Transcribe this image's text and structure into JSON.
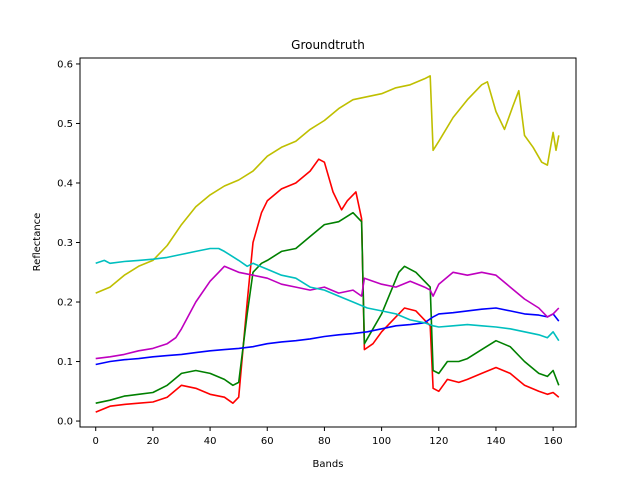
{
  "chart_data": {
    "type": "line",
    "title": "Groundtruth",
    "xlabel": "Bands",
    "ylabel": "Reflectance",
    "xlim": [
      -5.5,
      168
    ],
    "ylim": [
      -0.01,
      0.61
    ],
    "xticks": [
      0,
      20,
      40,
      60,
      80,
      100,
      120,
      140,
      160
    ],
    "yticks": [
      0.0,
      0.1,
      0.2,
      0.3,
      0.4,
      0.5,
      0.6
    ],
    "ytick_labels": [
      "0.0",
      "0.1",
      "0.2",
      "0.3",
      "0.4",
      "0.5",
      "0.6"
    ],
    "grid": false,
    "series": [
      {
        "color": "#bfbf00",
        "points": [
          [
            0,
            0.215
          ],
          [
            5,
            0.225
          ],
          [
            10,
            0.245
          ],
          [
            15,
            0.26
          ],
          [
            20,
            0.27
          ],
          [
            25,
            0.295
          ],
          [
            30,
            0.33
          ],
          [
            35,
            0.36
          ],
          [
            40,
            0.38
          ],
          [
            45,
            0.395
          ],
          [
            50,
            0.405
          ],
          [
            55,
            0.42
          ],
          [
            60,
            0.445
          ],
          [
            65,
            0.46
          ],
          [
            70,
            0.47
          ],
          [
            75,
            0.49
          ],
          [
            80,
            0.505
          ],
          [
            85,
            0.525
          ],
          [
            90,
            0.54
          ],
          [
            95,
            0.545
          ],
          [
            100,
            0.55
          ],
          [
            105,
            0.56
          ],
          [
            110,
            0.565
          ],
          [
            115,
            0.575
          ],
          [
            117,
            0.58
          ],
          [
            118,
            0.455
          ],
          [
            120,
            0.47
          ],
          [
            125,
            0.51
          ],
          [
            130,
            0.54
          ],
          [
            135,
            0.565
          ],
          [
            137,
            0.57
          ],
          [
            140,
            0.52
          ],
          [
            143,
            0.49
          ],
          [
            146,
            0.53
          ],
          [
            148,
            0.555
          ],
          [
            150,
            0.48
          ],
          [
            153,
            0.46
          ],
          [
            156,
            0.435
          ],
          [
            158,
            0.43
          ],
          [
            160,
            0.485
          ],
          [
            161,
            0.455
          ],
          [
            162,
            0.48
          ]
        ]
      },
      {
        "color": "#ff0000",
        "points": [
          [
            0,
            0.015
          ],
          [
            5,
            0.025
          ],
          [
            10,
            0.028
          ],
          [
            15,
            0.03
          ],
          [
            20,
            0.032
          ],
          [
            25,
            0.04
          ],
          [
            30,
            0.06
          ],
          [
            35,
            0.055
          ],
          [
            40,
            0.045
          ],
          [
            45,
            0.04
          ],
          [
            48,
            0.03
          ],
          [
            50,
            0.04
          ],
          [
            53,
            0.2
          ],
          [
            55,
            0.3
          ],
          [
            58,
            0.35
          ],
          [
            60,
            0.37
          ],
          [
            65,
            0.39
          ],
          [
            70,
            0.4
          ],
          [
            75,
            0.42
          ],
          [
            78,
            0.44
          ],
          [
            80,
            0.435
          ],
          [
            83,
            0.385
          ],
          [
            86,
            0.355
          ],
          [
            88,
            0.37
          ],
          [
            91,
            0.385
          ],
          [
            93,
            0.34
          ],
          [
            94,
            0.12
          ],
          [
            97,
            0.13
          ],
          [
            100,
            0.15
          ],
          [
            105,
            0.175
          ],
          [
            108,
            0.19
          ],
          [
            112,
            0.185
          ],
          [
            115,
            0.17
          ],
          [
            117,
            0.16
          ],
          [
            118,
            0.055
          ],
          [
            120,
            0.05
          ],
          [
            123,
            0.07
          ],
          [
            127,
            0.065
          ],
          [
            130,
            0.07
          ],
          [
            135,
            0.08
          ],
          [
            140,
            0.09
          ],
          [
            145,
            0.08
          ],
          [
            150,
            0.06
          ],
          [
            155,
            0.05
          ],
          [
            158,
            0.045
          ],
          [
            160,
            0.048
          ],
          [
            162,
            0.04
          ]
        ]
      },
      {
        "color": "#008000",
        "points": [
          [
            0,
            0.03
          ],
          [
            5,
            0.035
          ],
          [
            10,
            0.042
          ],
          [
            15,
            0.045
          ],
          [
            20,
            0.048
          ],
          [
            25,
            0.06
          ],
          [
            30,
            0.08
          ],
          [
            35,
            0.085
          ],
          [
            40,
            0.08
          ],
          [
            45,
            0.07
          ],
          [
            48,
            0.06
          ],
          [
            50,
            0.065
          ],
          [
            53,
            0.18
          ],
          [
            55,
            0.25
          ],
          [
            58,
            0.265
          ],
          [
            60,
            0.27
          ],
          [
            65,
            0.285
          ],
          [
            70,
            0.29
          ],
          [
            75,
            0.31
          ],
          [
            80,
            0.33
          ],
          [
            85,
            0.335
          ],
          [
            90,
            0.35
          ],
          [
            93,
            0.335
          ],
          [
            94,
            0.13
          ],
          [
            97,
            0.155
          ],
          [
            100,
            0.18
          ],
          [
            103,
            0.215
          ],
          [
            106,
            0.25
          ],
          [
            108,
            0.26
          ],
          [
            112,
            0.25
          ],
          [
            115,
            0.235
          ],
          [
            117,
            0.225
          ],
          [
            118,
            0.085
          ],
          [
            120,
            0.08
          ],
          [
            123,
            0.1
          ],
          [
            127,
            0.1
          ],
          [
            130,
            0.105
          ],
          [
            135,
            0.12
          ],
          [
            140,
            0.135
          ],
          [
            145,
            0.125
          ],
          [
            150,
            0.1
          ],
          [
            155,
            0.08
          ],
          [
            158,
            0.075
          ],
          [
            160,
            0.085
          ],
          [
            162,
            0.06
          ]
        ]
      },
      {
        "color": "#0000ff",
        "points": [
          [
            0,
            0.095
          ],
          [
            5,
            0.1
          ],
          [
            10,
            0.103
          ],
          [
            15,
            0.105
          ],
          [
            20,
            0.108
          ],
          [
            25,
            0.11
          ],
          [
            30,
            0.112
          ],
          [
            35,
            0.115
          ],
          [
            40,
            0.118
          ],
          [
            45,
            0.12
          ],
          [
            50,
            0.122
          ],
          [
            55,
            0.125
          ],
          [
            60,
            0.13
          ],
          [
            65,
            0.133
          ],
          [
            70,
            0.135
          ],
          [
            75,
            0.138
          ],
          [
            80,
            0.142
          ],
          [
            85,
            0.145
          ],
          [
            90,
            0.147
          ],
          [
            95,
            0.15
          ],
          [
            100,
            0.155
          ],
          [
            105,
            0.16
          ],
          [
            110,
            0.162
          ],
          [
            115,
            0.165
          ],
          [
            118,
            0.175
          ],
          [
            120,
            0.18
          ],
          [
            125,
            0.182
          ],
          [
            130,
            0.185
          ],
          [
            135,
            0.188
          ],
          [
            140,
            0.19
          ],
          [
            145,
            0.185
          ],
          [
            150,
            0.18
          ],
          [
            155,
            0.178
          ],
          [
            158,
            0.175
          ],
          [
            160,
            0.18
          ],
          [
            162,
            0.168
          ]
        ]
      },
      {
        "color": "#bf00bf",
        "points": [
          [
            0,
            0.105
          ],
          [
            5,
            0.108
          ],
          [
            10,
            0.112
          ],
          [
            15,
            0.118
          ],
          [
            20,
            0.122
          ],
          [
            25,
            0.13
          ],
          [
            28,
            0.14
          ],
          [
            30,
            0.155
          ],
          [
            35,
            0.2
          ],
          [
            40,
            0.235
          ],
          [
            43,
            0.25
          ],
          [
            45,
            0.26
          ],
          [
            50,
            0.25
          ],
          [
            55,
            0.245
          ],
          [
            60,
            0.24
          ],
          [
            65,
            0.23
          ],
          [
            70,
            0.225
          ],
          [
            75,
            0.22
          ],
          [
            80,
            0.225
          ],
          [
            85,
            0.215
          ],
          [
            90,
            0.22
          ],
          [
            93,
            0.21
          ],
          [
            94,
            0.24
          ],
          [
            97,
            0.235
          ],
          [
            100,
            0.23
          ],
          [
            105,
            0.225
          ],
          [
            110,
            0.235
          ],
          [
            115,
            0.225
          ],
          [
            117,
            0.22
          ],
          [
            118,
            0.21
          ],
          [
            120,
            0.23
          ],
          [
            125,
            0.25
          ],
          [
            130,
            0.245
          ],
          [
            135,
            0.25
          ],
          [
            140,
            0.245
          ],
          [
            145,
            0.225
          ],
          [
            150,
            0.205
          ],
          [
            155,
            0.19
          ],
          [
            158,
            0.175
          ],
          [
            160,
            0.18
          ],
          [
            162,
            0.19
          ]
        ]
      },
      {
        "color": "#00bfbf",
        "points": [
          [
            0,
            0.265
          ],
          [
            3,
            0.27
          ],
          [
            5,
            0.265
          ],
          [
            10,
            0.268
          ],
          [
            15,
            0.27
          ],
          [
            20,
            0.272
          ],
          [
            25,
            0.275
          ],
          [
            30,
            0.28
          ],
          [
            35,
            0.285
          ],
          [
            40,
            0.29
          ],
          [
            43,
            0.29
          ],
          [
            45,
            0.285
          ],
          [
            50,
            0.27
          ],
          [
            53,
            0.26
          ],
          [
            55,
            0.265
          ],
          [
            60,
            0.255
          ],
          [
            65,
            0.245
          ],
          [
            70,
            0.24
          ],
          [
            75,
            0.225
          ],
          [
            80,
            0.22
          ],
          [
            85,
            0.21
          ],
          [
            90,
            0.2
          ],
          [
            95,
            0.19
          ],
          [
            100,
            0.185
          ],
          [
            105,
            0.18
          ],
          [
            110,
            0.17
          ],
          [
            115,
            0.165
          ],
          [
            118,
            0.16
          ],
          [
            120,
            0.158
          ],
          [
            125,
            0.16
          ],
          [
            130,
            0.162
          ],
          [
            135,
            0.16
          ],
          [
            140,
            0.158
          ],
          [
            145,
            0.155
          ],
          [
            150,
            0.15
          ],
          [
            155,
            0.145
          ],
          [
            158,
            0.14
          ],
          [
            160,
            0.15
          ],
          [
            162,
            0.135
          ]
        ]
      }
    ]
  }
}
